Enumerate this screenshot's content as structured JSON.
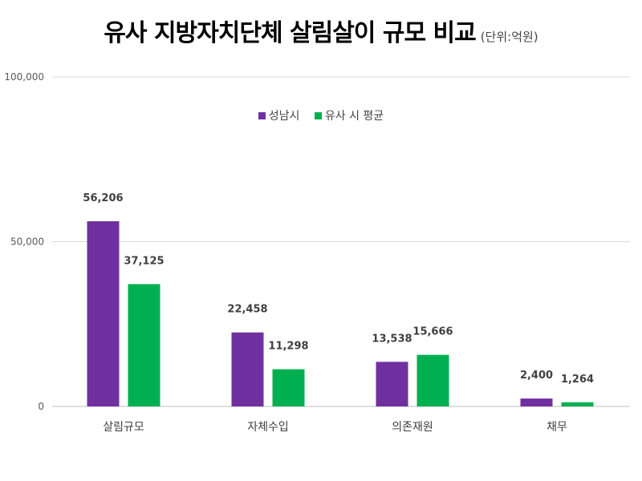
{
  "chart_data": {
    "type": "bar",
    "title": "유사 지방자치단체 살림살이 규모 비교",
    "unit_label": "(단위:억원)",
    "categories": [
      "살림규모",
      "자체수입",
      "의존재원",
      "채무"
    ],
    "series": [
      {
        "name": "성남시",
        "color": "#7030a0",
        "values": [
          56206,
          22458,
          13538,
          2400
        ],
        "labels": [
          "56,206",
          "22,458",
          "13,538",
          "2,400"
        ]
      },
      {
        "name": "유사 시 평균",
        "color": "#00b050",
        "values": [
          37125,
          11298,
          15666,
          1264
        ],
        "labels": [
          "37,125",
          "11,298",
          "15,666",
          "1,264"
        ]
      }
    ],
    "ylim": [
      0,
      100000
    ],
    "yticks": [
      0,
      50000,
      100000
    ],
    "ytick_labels": [
      "0",
      "50,000",
      "100,000"
    ],
    "legend": "top-center",
    "xlabel": "",
    "ylabel": ""
  }
}
